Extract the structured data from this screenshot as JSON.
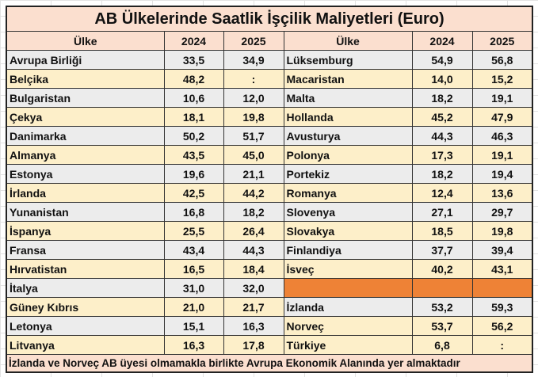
{
  "title": "AB Ülkelerinde Saatlik İşçilik Maliyetleri (Euro)",
  "headers": [
    "Ülke",
    "2024",
    "2025",
    "Ülke",
    "2024",
    "2025"
  ],
  "colors": {
    "gray": "#ececec",
    "cream": "#fdefc9",
    "orange": "#ee8236",
    "header": "#fbdfcf"
  },
  "rows": [
    {
      "l": [
        "Avrupa Birliği",
        "33,5",
        "34,9"
      ],
      "lc": "g",
      "r": [
        "Lüksemburg",
        "54,9",
        "56,8"
      ],
      "rc": "g"
    },
    {
      "l": [
        "Belçika",
        "48,2",
        ":"
      ],
      "lc": "c",
      "r": [
        "Macaristan",
        "14,0",
        "15,2"
      ],
      "rc": "c"
    },
    {
      "l": [
        "Bulgaristan",
        "10,6",
        "12,0"
      ],
      "lc": "g",
      "r": [
        "Malta",
        "18,2",
        "19,1"
      ],
      "rc": "g"
    },
    {
      "l": [
        "Çekya",
        "18,1",
        "19,8"
      ],
      "lc": "c",
      "r": [
        "Hollanda",
        "45,2",
        "47,9"
      ],
      "rc": "c"
    },
    {
      "l": [
        "Danimarka",
        "50,2",
        "51,7"
      ],
      "lc": "g",
      "r": [
        "Avusturya",
        "44,3",
        "46,3"
      ],
      "rc": "g"
    },
    {
      "l": [
        "Almanya",
        "43,5",
        "45,0"
      ],
      "lc": "c",
      "r": [
        "Polonya",
        "17,3",
        "19,1"
      ],
      "rc": "c"
    },
    {
      "l": [
        "Estonya",
        "19,6",
        "21,1"
      ],
      "lc": "g",
      "r": [
        "Portekiz",
        "18,2",
        "19,4"
      ],
      "rc": "g"
    },
    {
      "l": [
        "İrlanda",
        "42,5",
        "44,2"
      ],
      "lc": "c",
      "r": [
        "Romanya",
        "12,4",
        "13,6"
      ],
      "rc": "c"
    },
    {
      "l": [
        "Yunanistan",
        "16,8",
        "18,2"
      ],
      "lc": "g",
      "r": [
        "Slovenya",
        "27,1",
        "29,7"
      ],
      "rc": "g"
    },
    {
      "l": [
        "İspanya",
        "25,5",
        "26,4"
      ],
      "lc": "c",
      "r": [
        "Slovakya",
        "18,5",
        "19,8"
      ],
      "rc": "c"
    },
    {
      "l": [
        "Fransa",
        "43,4",
        "44,3"
      ],
      "lc": "g",
      "r": [
        "Finlandiya",
        "37,7",
        "39,4"
      ],
      "rc": "g"
    },
    {
      "l": [
        "Hırvatistan",
        "16,5",
        "18,4"
      ],
      "lc": "c",
      "r": [
        "İsveç",
        "40,2",
        "43,1"
      ],
      "rc": "c"
    },
    {
      "l": [
        "İtalya",
        "31,0",
        "32,0"
      ],
      "lc": "g",
      "r": [
        "",
        "",
        ""
      ],
      "rc": "o"
    },
    {
      "l": [
        "Güney Kıbrıs",
        "21,0",
        "21,7"
      ],
      "lc": "c",
      "r": [
        "İzlanda",
        "53,2",
        "59,3"
      ],
      "rc": "g"
    },
    {
      "l": [
        "Letonya",
        "15,1",
        "16,3"
      ],
      "lc": "g",
      "r": [
        "Norveç",
        "53,7",
        "56,2"
      ],
      "rc": "c"
    },
    {
      "l": [
        "Litvanya",
        "16,3",
        "17,8"
      ],
      "lc": "c",
      "r": [
        "Türkiye",
        "6,8",
        ":"
      ],
      "rc": "c"
    }
  ],
  "footnote": "İzlanda ve Norveç AB üyesi olmamakla birlikte Avrupa Ekonomik Alanında yer almaktadır"
}
